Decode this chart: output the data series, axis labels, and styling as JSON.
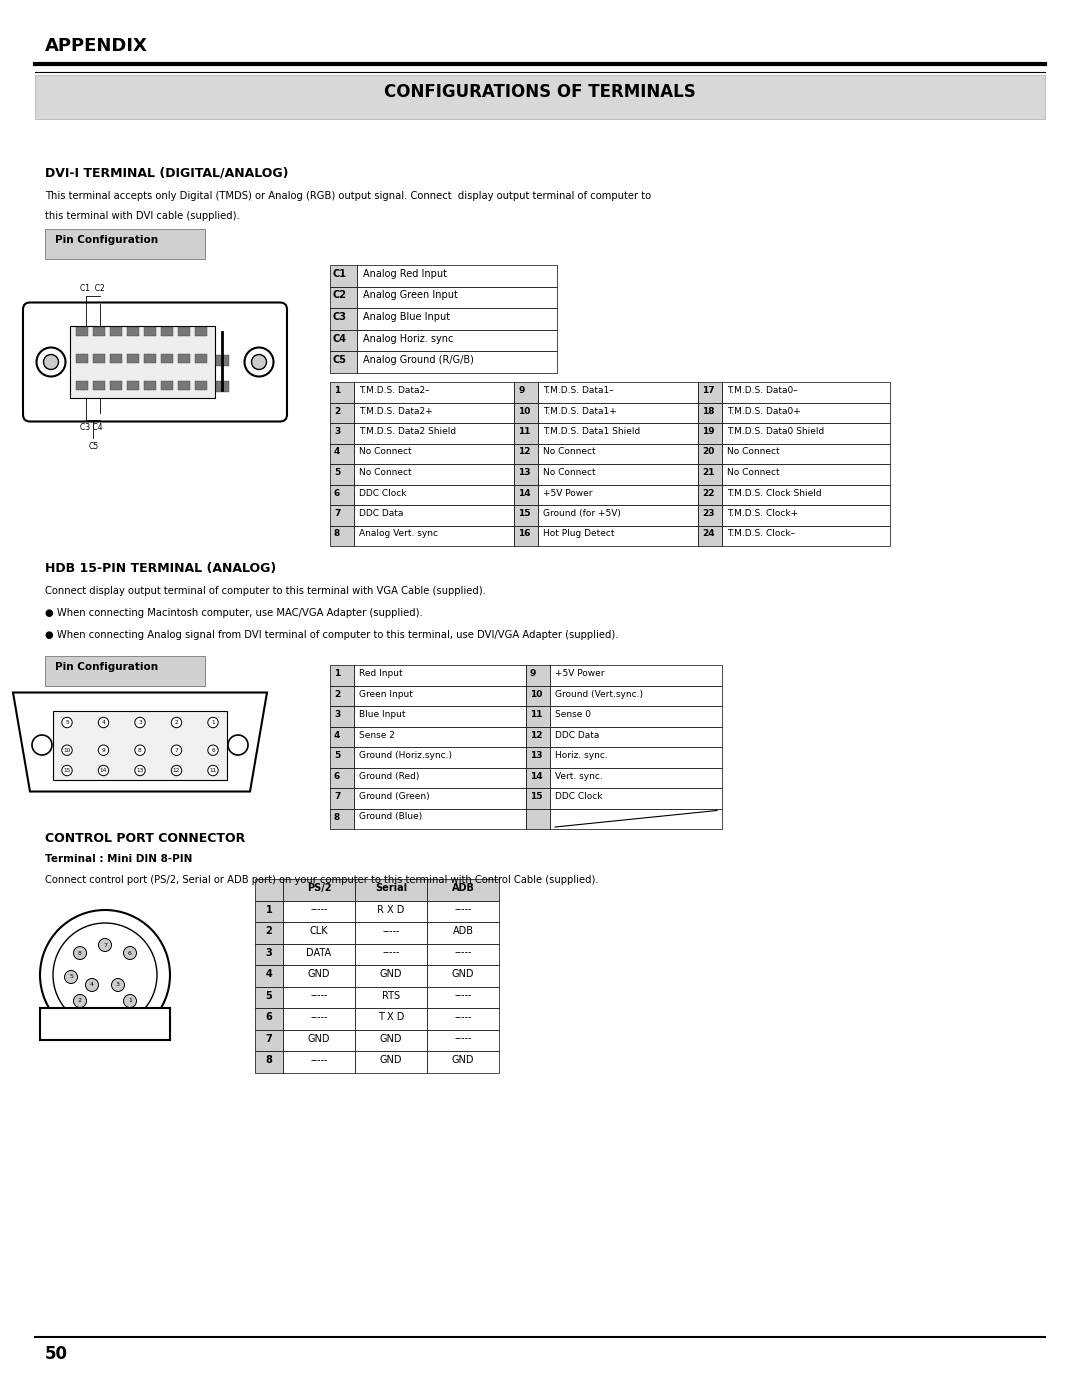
{
  "page_title": "APPENDIX",
  "section_title": "CONFIGURATIONS OF TERMINALS",
  "bg_color": "#ffffff",
  "dvi_title": "DVI-I TERMINAL (DIGITAL/ANALOG)",
  "dvi_c_headers": [
    "C1",
    "C2",
    "C3",
    "C4",
    "C5"
  ],
  "dvi_c_values": [
    "Analog Red Input",
    "Analog Green Input",
    "Analog Blue Input",
    "Analog Horiz. sync",
    "Analog Ground (R/G/B)"
  ],
  "dvi_main_table": [
    [
      "1",
      "T.M.D.S. Data2–",
      "9",
      "T.M.D.S. Data1–",
      "17",
      "T.M.D.S. Data0–"
    ],
    [
      "2",
      "T.M.D.S. Data2+",
      "10",
      "T.M.D.S. Data1+",
      "18",
      "T.M.D.S. Data0+"
    ],
    [
      "3",
      "T.M.D.S. Data2 Shield",
      "11",
      "T.M.D.S. Data1 Shield",
      "19",
      "T.M.D.S. Data0 Shield"
    ],
    [
      "4",
      "No Connect",
      "12",
      "No Connect",
      "20",
      "No Connect"
    ],
    [
      "5",
      "No Connect",
      "13",
      "No Connect",
      "21",
      "No Connect"
    ],
    [
      "6",
      "DDC Clock",
      "14",
      "+5V Power",
      "22",
      "T.M.D.S. Clock Shield"
    ],
    [
      "7",
      "DDC Data",
      "15",
      "Ground (for +5V)",
      "23",
      "T.M.D.S. Clock+"
    ],
    [
      "8",
      "Analog Vert. sync",
      "16",
      "Hot Plug Detect",
      "24",
      "T.M.D.S. Clock–"
    ]
  ],
  "hdb_title": "HDB 15-PIN TERMINAL (ANALOG)",
  "hdb_desc1": "Connect display output terminal of computer to this terminal with VGA Cable (supplied).",
  "hdb_desc2": "When connecting Macintosh computer, use MAC/VGA Adapter (supplied).",
  "hdb_desc3": "When connecting Analog signal from DVI terminal of computer to this terminal, use DVI/VGA Adapter (supplied).",
  "hdb_table": [
    [
      "1",
      "Red Input",
      "9",
      "+5V Power"
    ],
    [
      "2",
      "Green Input",
      "10",
      "Ground (Vert.sync.)"
    ],
    [
      "3",
      "Blue Input",
      "11",
      "Sense 0"
    ],
    [
      "4",
      "Sense 2",
      "12",
      "DDC Data"
    ],
    [
      "5",
      "Ground (Horiz.sync.)",
      "13",
      "Horiz. sync."
    ],
    [
      "6",
      "Ground (Red)",
      "14",
      "Vert. sync."
    ],
    [
      "7",
      "Ground (Green)",
      "15",
      "DDC Clock"
    ],
    [
      "8",
      "Ground (Blue)",
      "",
      ""
    ]
  ],
  "ctrl_title": "CONTROL PORT CONNECTOR",
  "ctrl_subtitle": "Terminal : Mini DIN 8-PIN",
  "ctrl_desc": "Connect control port (PS/2, Serial or ADB port) on your computer to this terminal with Control Cable (supplied).",
  "ctrl_table_headers": [
    "",
    "PS/2",
    "Serial",
    "ADB"
  ],
  "ctrl_table": [
    [
      "1",
      "-----",
      "R X D",
      "-----"
    ],
    [
      "2",
      "CLK",
      "-----",
      "ADB"
    ],
    [
      "3",
      "DATA",
      "-----",
      "-----"
    ],
    [
      "4",
      "GND",
      "GND",
      "GND"
    ],
    [
      "5",
      "-----",
      "RTS",
      "-----"
    ],
    [
      "6",
      "-----",
      "T X D",
      "-----"
    ],
    [
      "7",
      "GND",
      "GND",
      "-----"
    ],
    [
      "8",
      "-----",
      "GND",
      "GND"
    ]
  ],
  "page_number": "50"
}
